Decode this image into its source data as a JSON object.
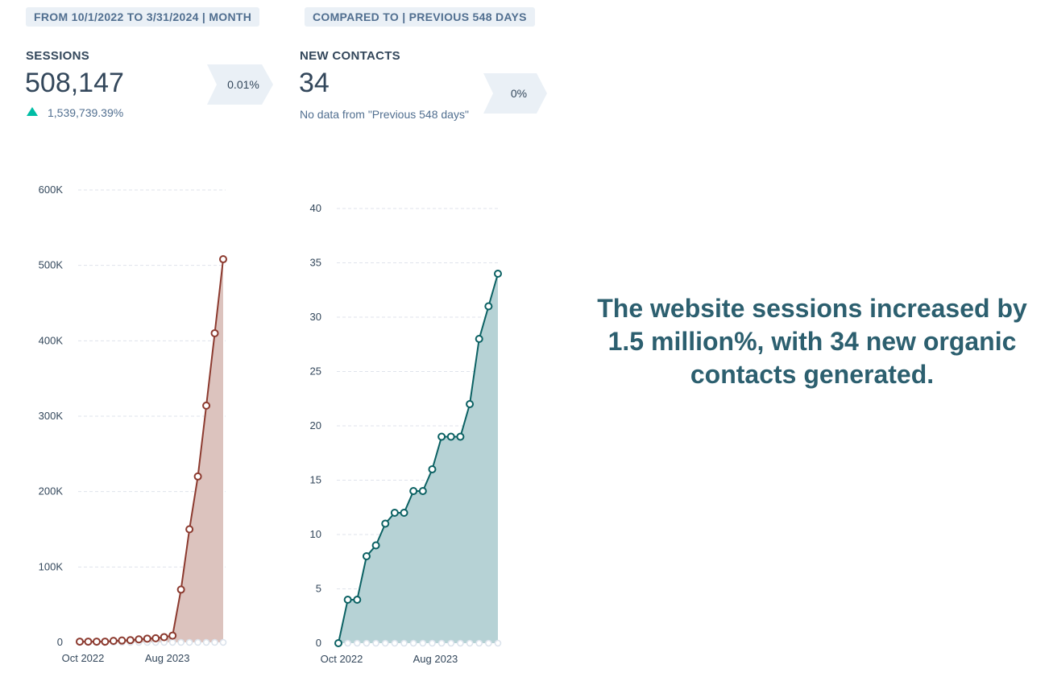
{
  "filters": {
    "date_range": "FROM 10/1/2022 TO 3/31/2024 | MONTH",
    "comparison": "COMPARED TO | PREVIOUS 548 DAYS"
  },
  "kpis": {
    "sessions": {
      "label": "SESSIONS",
      "value": "508,147",
      "change": "1,539,739.39%",
      "change_direction": "up",
      "badge": "0.01%",
      "accent_color": "#00bda5"
    },
    "new_contacts": {
      "label": "NEW CONTACTS",
      "value": "34",
      "note": "No data from \"Previous 548 days\"",
      "badge": "0%"
    }
  },
  "callout": "The website sessions increased by 1.5 million%, with 34 new organic contacts generated.",
  "chart_data": [
    {
      "type": "area",
      "name": "sessions",
      "x_tick_labels": [
        "Oct 2022",
        "Aug 2023"
      ],
      "x_tick_indices": [
        0,
        10
      ],
      "y_tick_labels": [
        "0",
        "100K",
        "200K",
        "300K",
        "400K",
        "500K",
        "600K"
      ],
      "ylim": [
        0,
        600000
      ],
      "grid": true,
      "colors": {
        "line": "#8c3a2f",
        "fill": "#dcc3be",
        "comparison": "#dbe3ec"
      },
      "series": [
        {
          "values": [
            1000,
            1000,
            1000,
            1000,
            2000,
            2500,
            3000,
            4000,
            5000,
            5500,
            7000,
            9000,
            70000,
            150000,
            220000,
            314000,
            410000,
            508147
          ]
        },
        {
          "values": [
            0,
            0,
            0,
            0,
            0,
            0,
            0,
            0,
            0,
            0,
            0,
            0,
            0,
            0,
            0,
            0,
            0,
            0
          ]
        }
      ]
    },
    {
      "type": "area",
      "name": "new_contacts",
      "x_tick_labels": [
        "Oct 2022",
        "Aug 2023"
      ],
      "x_tick_indices": [
        0,
        10
      ],
      "y_tick_labels": [
        "0",
        "5",
        "10",
        "15",
        "20",
        "25",
        "30",
        "35",
        "40"
      ],
      "ylim": [
        0,
        40
      ],
      "grid": true,
      "colors": {
        "line": "#0b6163",
        "fill": "#b6d2d5",
        "comparison": "#dbe3ec"
      },
      "series": [
        {
          "values": [
            0,
            4,
            4,
            8,
            9,
            11,
            12,
            12,
            14,
            14,
            16,
            19,
            19,
            19,
            22,
            28,
            31,
            34
          ]
        },
        {
          "values": [
            0,
            0,
            0,
            0,
            0,
            0,
            0,
            0,
            0,
            0,
            0,
            0,
            0,
            0,
            0,
            0,
            0,
            0
          ]
        }
      ]
    }
  ]
}
